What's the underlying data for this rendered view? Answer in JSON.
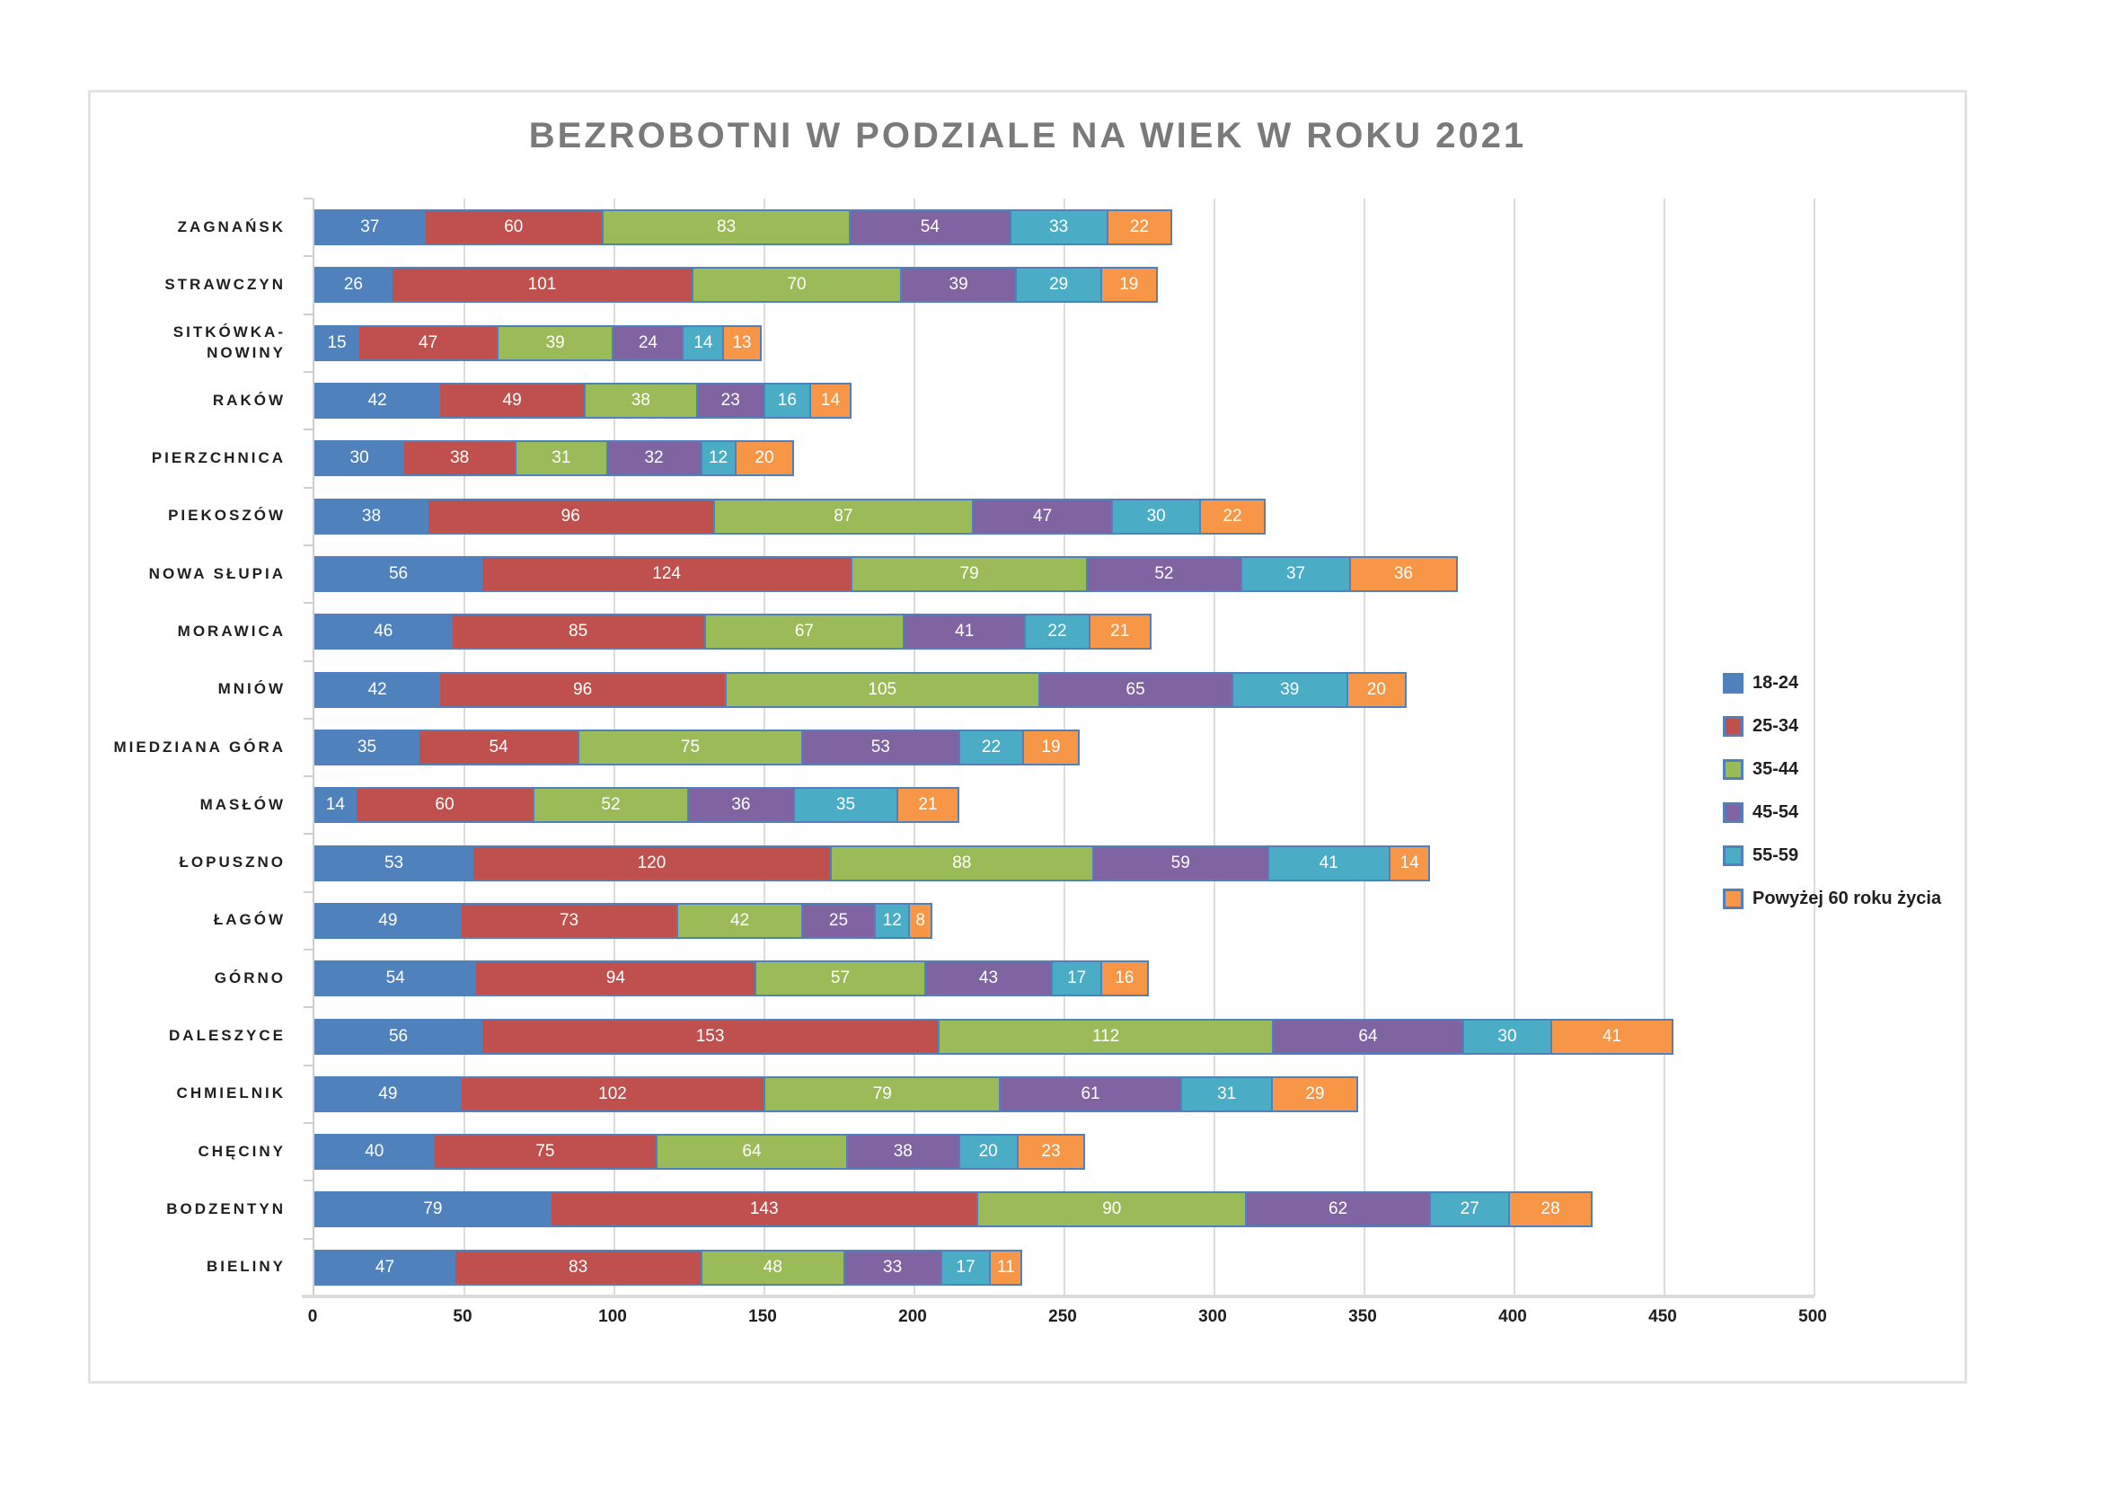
{
  "chart_data": {
    "type": "bar",
    "orientation": "horizontal-stacked",
    "title": "BEZROBOTNI W PODZIALE NA WIEK W ROKU 2021",
    "categories": [
      "ZAGNAŃSK",
      "STRAWCZYN",
      "SITKÓWKA-\nNOWINY",
      "RAKÓW",
      "PIERZCHNICA",
      "PIEKOSZÓW",
      "NOWA SŁUPIA",
      "MORAWICA",
      "MNIÓW",
      "MIEDZIANA GÓRA",
      "MASŁÓW",
      "ŁOPUSZNO",
      "ŁAGÓW",
      "GÓRNO",
      "DALESZYCE",
      "CHMIELNIK",
      "CHĘCINY",
      "BODZENTYN",
      "BIELINY"
    ],
    "series": [
      {
        "name": "18-24",
        "color": "#4F81BD",
        "values": [
          37,
          26,
          15,
          42,
          30,
          38,
          56,
          46,
          42,
          35,
          14,
          53,
          49,
          54,
          56,
          49,
          40,
          79,
          47
        ]
      },
      {
        "name": "25-34",
        "color": "#C0504D",
        "values": [
          60,
          101,
          47,
          49,
          38,
          96,
          124,
          85,
          96,
          54,
          60,
          120,
          73,
          94,
          153,
          102,
          75,
          143,
          83
        ]
      },
      {
        "name": "35-44",
        "color": "#9BBB59",
        "values": [
          83,
          70,
          39,
          38,
          31,
          87,
          79,
          67,
          105,
          75,
          52,
          88,
          42,
          57,
          112,
          79,
          64,
          90,
          48
        ]
      },
      {
        "name": "45-54",
        "color": "#8064A2",
        "values": [
          54,
          39,
          24,
          23,
          32,
          47,
          52,
          41,
          65,
          53,
          36,
          59,
          25,
          43,
          64,
          61,
          38,
          62,
          33
        ]
      },
      {
        "name": "55-59",
        "color": "#4BACC6",
        "values": [
          33,
          29,
          14,
          16,
          12,
          30,
          37,
          22,
          39,
          22,
          35,
          41,
          12,
          17,
          30,
          31,
          20,
          27,
          17
        ]
      },
      {
        "name": "Powyżej 60 roku życia",
        "color": "#F79646",
        "values": [
          22,
          19,
          13,
          14,
          20,
          22,
          36,
          21,
          20,
          19,
          21,
          14,
          8,
          16,
          41,
          29,
          23,
          28,
          11
        ]
      }
    ],
    "xlim": [
      0,
      500
    ],
    "xticks": [
      0,
      50,
      100,
      150,
      200,
      250,
      300,
      350,
      400,
      450,
      500
    ],
    "grid": "vertical",
    "legend_position": "right",
    "bar_border_color": "#5081BD",
    "value_label_color": "#FFFFFF",
    "title_color": "#7A7A7A"
  }
}
